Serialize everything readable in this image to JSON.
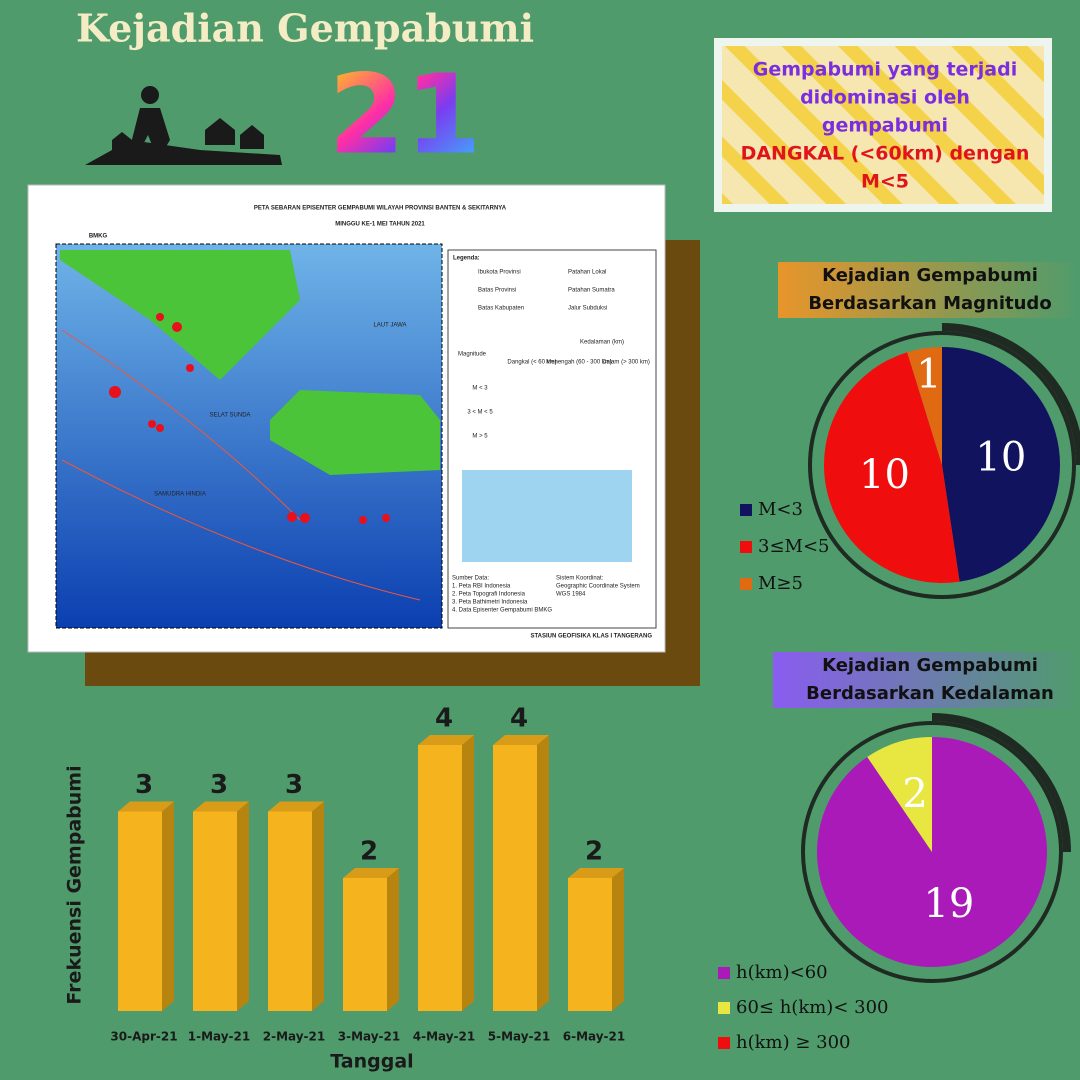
{
  "header": {
    "title": "Kejadian Gempabumi",
    "number": "21"
  },
  "callout": {
    "lines": [
      "Gempabumi yang terjadi",
      "didominasi oleh",
      "gempabumi"
    ],
    "highlight": [
      "DANGKAL (<60km) dengan",
      "M<5"
    ]
  },
  "map": {
    "title": "PETA SEBARAN EPISENTER GEMPABUMI WILAYAH PROVINSI BANTEN & SEKITARNYA",
    "subtitle": "MINGGU KE-1 MEI TAHUN 2021",
    "logo": "BMKG",
    "sea_labels": [
      "LAUT JAWA",
      "SELAT SUNDA",
      "SAMUDRA HINDIA"
    ],
    "legend_title": "Legenda:",
    "legend_items": [
      "Ibukota Provinsi",
      "Batas Provinsi",
      "Batas Kabupaten",
      "Patahan Lokal",
      "Patahan Sumatra",
      "Jalur Subduksi"
    ],
    "table": {
      "row_header": "Magnitude",
      "col_header": "Kedalaman (km)",
      "cols": [
        "Dangkal (< 60 km)",
        "Menengah (60 - 300 km)",
        "Dalam (> 300 km)"
      ],
      "rows": [
        "M < 3",
        "3 < M < 5",
        "M > 5"
      ]
    },
    "sources_title": "Sumber Data:",
    "sources": [
      "1. Peta RBI Indonesia",
      "2. Peta Topografi Indonesia",
      "3. Peta Bathimetri Indonesia",
      "4. Data Episenter Gempabumi BMKG"
    ],
    "coord_title": "Sistem Koordinat:",
    "coord": [
      "Geographic Coordinate System",
      "WGS 1984"
    ],
    "footer": "STASIUN GEOFISIKA KLAS I TANGERANG"
  },
  "chart_data": [
    {
      "type": "bar",
      "x_label": "Tanggal",
      "y_label": "Frekuensi Gempabumi",
      "categories": [
        "30-Apr-21",
        "1-May-21",
        "2-May-21",
        "3-May-21",
        "4-May-21",
        "5-May-21",
        "6-May-21"
      ],
      "values": [
        3,
        3,
        3,
        2,
        4,
        4,
        2
      ],
      "color": "#f5b41e"
    },
    {
      "type": "pie",
      "title": "Kejadian Gempabumi Berdasarkan Magnitudo",
      "categories": [
        "M<3",
        "3≤M<5",
        "M≥5"
      ],
      "values": [
        10,
        10,
        1
      ],
      "colors": [
        "#12135e",
        "#f00d0d",
        "#e06a12"
      ]
    },
    {
      "type": "pie",
      "title": "Kejadian Gempabumi Berdasarkan Kedalaman",
      "categories": [
        "h(km)<60",
        "60≤ h(km)< 300",
        "h(km) ≥ 300"
      ],
      "values": [
        19,
        2,
        0
      ],
      "colors": [
        "#a91ab8",
        "#e8e640",
        "#f00d0d"
      ]
    }
  ]
}
